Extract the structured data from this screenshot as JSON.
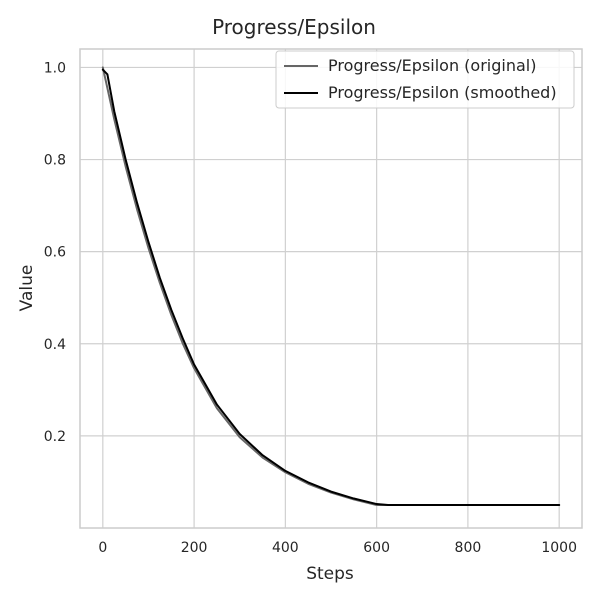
{
  "chart_data": {
    "type": "line",
    "title": "Progress/Epsilon",
    "xlabel": "Steps",
    "ylabel": "Value",
    "xlim": [
      -50,
      1050
    ],
    "ylim": [
      0.0,
      1.04
    ],
    "xticks": [
      0,
      200,
      400,
      600,
      800,
      1000
    ],
    "yticks": [
      0.2,
      0.4,
      0.6,
      0.8,
      1.0
    ],
    "xtick_labels": [
      "0",
      "200",
      "400",
      "600",
      "800",
      "1000"
    ],
    "ytick_labels": [
      "0.2",
      "0.4",
      "0.6",
      "0.8",
      "1.0"
    ],
    "grid": true,
    "legend_position": "top-right",
    "series": [
      {
        "name": "Progress/Epsilon (original)",
        "color": "#666666",
        "x": [
          0,
          25,
          50,
          75,
          100,
          125,
          150,
          175,
          200,
          250,
          300,
          350,
          400,
          450,
          500,
          550,
          600,
          650,
          700,
          750,
          800,
          850,
          900,
          950,
          1000
        ],
        "values": [
          1.0,
          0.888,
          0.785,
          0.692,
          0.608,
          0.532,
          0.463,
          0.401,
          0.347,
          0.26,
          0.197,
          0.153,
          0.121,
          0.096,
          0.077,
          0.062,
          0.05,
          0.05,
          0.05,
          0.05,
          0.05,
          0.05,
          0.05,
          0.05,
          0.05
        ]
      },
      {
        "name": "Progress/Epsilon (smoothed)",
        "color": "#000000",
        "x": [
          0,
          10,
          25,
          50,
          75,
          100,
          125,
          150,
          175,
          200,
          250,
          300,
          350,
          400,
          450,
          500,
          550,
          600,
          625,
          650,
          700,
          750,
          800,
          850,
          900,
          950,
          1000
        ],
        "values": [
          0.995,
          0.985,
          0.905,
          0.8,
          0.706,
          0.621,
          0.543,
          0.474,
          0.412,
          0.355,
          0.268,
          0.204,
          0.158,
          0.124,
          0.099,
          0.079,
          0.064,
          0.052,
          0.05,
          0.05,
          0.05,
          0.05,
          0.05,
          0.05,
          0.05,
          0.05,
          0.05
        ]
      }
    ]
  }
}
